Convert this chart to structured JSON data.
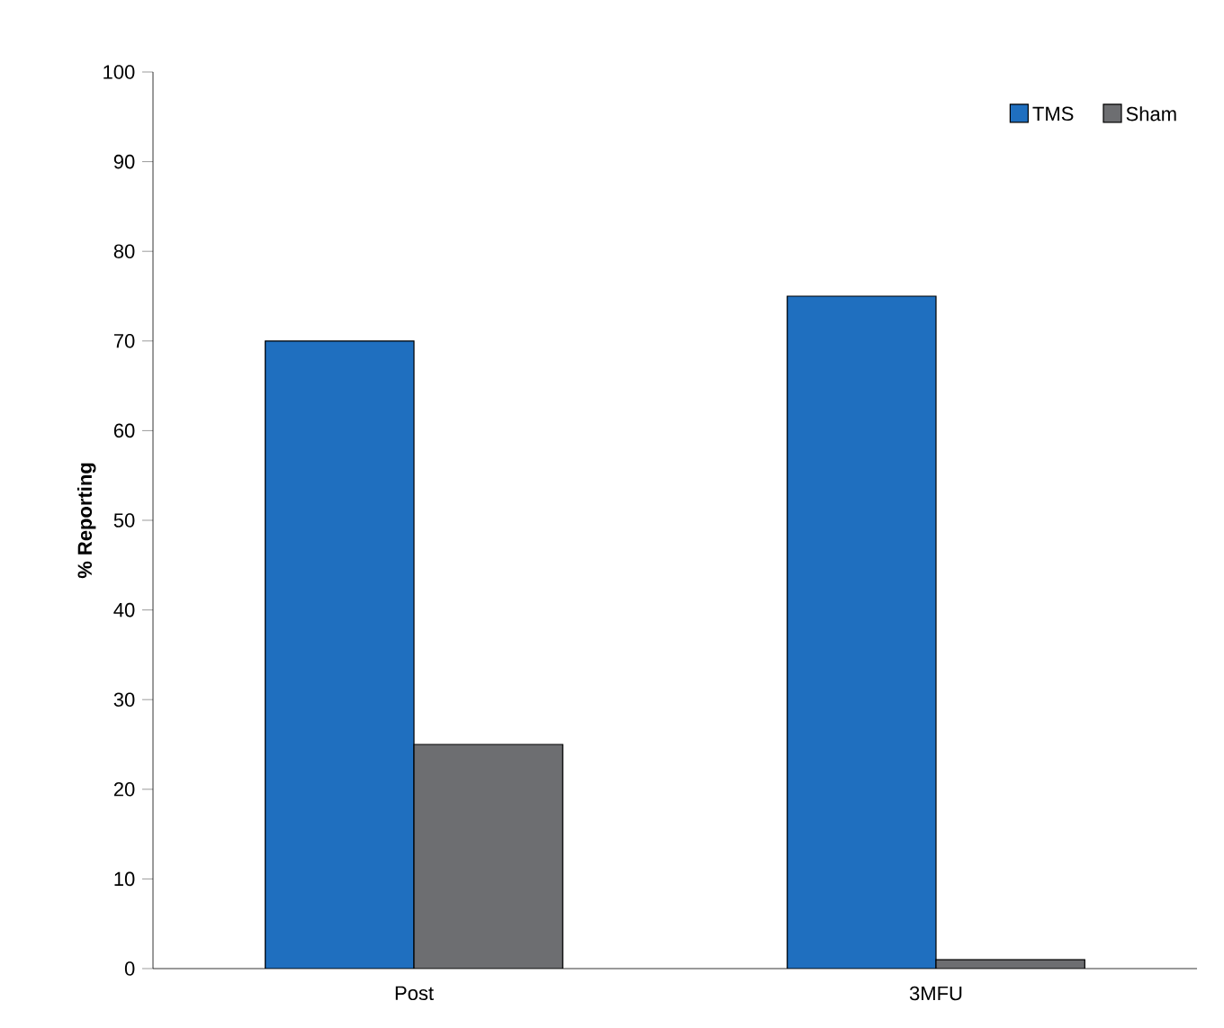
{
  "chart_data": {
    "type": "bar",
    "ylabel": "% Reporting",
    "categories": [
      "Post",
      "3MFU"
    ],
    "series": [
      {
        "name": "TMS",
        "color": "#1f6fbf",
        "values": [
          70,
          75
        ]
      },
      {
        "name": "Sham",
        "color": "#6d6e71",
        "values": [
          25,
          1
        ]
      }
    ],
    "ylim": [
      0,
      100
    ],
    "yticks": [
      0,
      10,
      20,
      30,
      40,
      50,
      60,
      70,
      80,
      90,
      100
    ],
    "grid": false,
    "legend": "top right"
  }
}
